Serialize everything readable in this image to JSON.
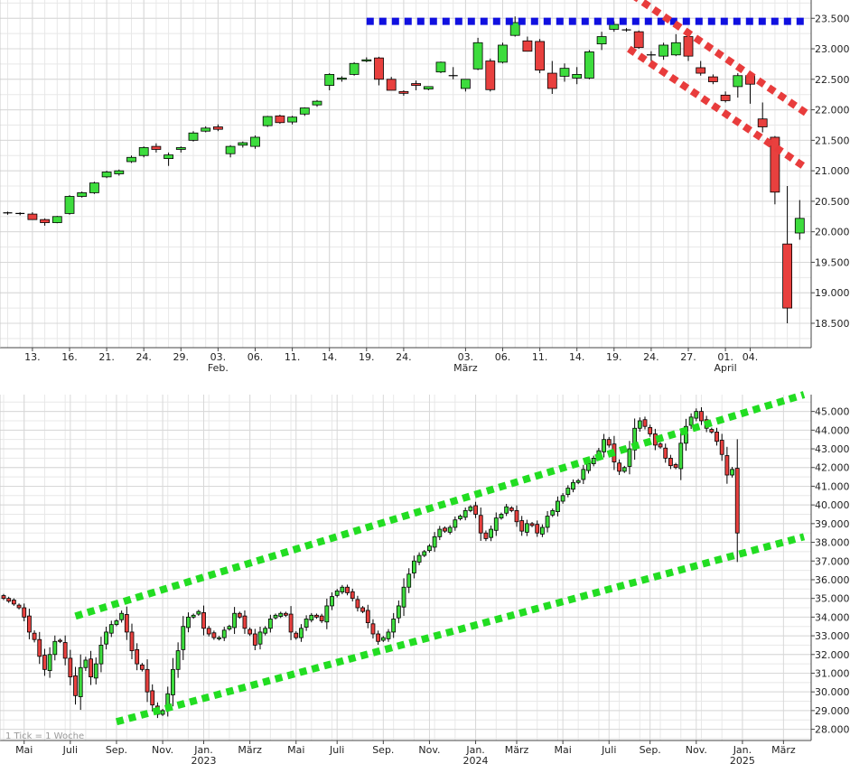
{
  "colors": {
    "up": "#3ddc3d",
    "down": "#e8403e",
    "grid": "#d8d8d8",
    "axis": "#444444",
    "text": "#222222",
    "resistance": "#1010e0",
    "downtrend": "#e83c3c",
    "channel": "#22dd22",
    "footnote": "#999999"
  },
  "chart_data": [
    {
      "type": "candlestick",
      "ylim": [
        18100,
        23800
      ],
      "yticks": [
        18500,
        19000,
        19500,
        20000,
        20500,
        21000,
        21500,
        22000,
        22500,
        23000,
        23500
      ],
      "ytick_labels": [
        "18.500",
        "19.000",
        "19.500",
        "20.000",
        "20.500",
        "21.000",
        "21.500",
        "22.000",
        "22.500",
        "23.000",
        "23.500"
      ],
      "xtick_labels": [
        {
          "i": 2,
          "day": "13.",
          "month": ""
        },
        {
          "i": 5,
          "day": "16.",
          "month": ""
        },
        {
          "i": 8,
          "day": "21.",
          "month": ""
        },
        {
          "i": 11,
          "day": "24.",
          "month": ""
        },
        {
          "i": 14,
          "day": "29.",
          "month": ""
        },
        {
          "i": 17,
          "day": "03.",
          "month": "Feb."
        },
        {
          "i": 20,
          "day": "06.",
          "month": ""
        },
        {
          "i": 23,
          "day": "11.",
          "month": ""
        },
        {
          "i": 26,
          "day": "14.",
          "month": ""
        },
        {
          "i": 29,
          "day": "19.",
          "month": ""
        },
        {
          "i": 32,
          "day": "24.",
          "month": ""
        },
        {
          "i": 37,
          "day": "03.",
          "month": "März"
        },
        {
          "i": 40,
          "day": "06.",
          "month": ""
        },
        {
          "i": 43,
          "day": "11.",
          "month": ""
        },
        {
          "i": 46,
          "day": "14.",
          "month": ""
        },
        {
          "i": 49,
          "day": "19.",
          "month": ""
        },
        {
          "i": 52,
          "day": "24.",
          "month": ""
        },
        {
          "i": 55,
          "day": "27.",
          "month": ""
        },
        {
          "i": 58,
          "day": "01.",
          "month": "April"
        },
        {
          "i": 60,
          "day": "04.",
          "month": ""
        }
      ],
      "candles": [
        [
          20310,
          20330,
          20280,
          20300
        ],
        [
          20300,
          20320,
          20270,
          20290
        ],
        [
          20290,
          20320,
          20220,
          20200
        ],
        [
          20200,
          20220,
          20100,
          20150
        ],
        [
          20150,
          20260,
          20140,
          20250
        ],
        [
          20300,
          20600,
          20280,
          20580
        ],
        [
          20580,
          20660,
          20560,
          20640
        ],
        [
          20640,
          20820,
          20620,
          20800
        ],
        [
          20900,
          21000,
          20880,
          20980
        ],
        [
          20950,
          21020,
          20920,
          21000
        ],
        [
          21150,
          21250,
          21130,
          21220
        ],
        [
          21250,
          21400,
          21220,
          21380
        ],
        [
          21400,
          21450,
          21300,
          21350
        ],
        [
          21200,
          21300,
          21080,
          21260
        ],
        [
          21350,
          21400,
          21300,
          21380
        ],
        [
          21500,
          21650,
          21480,
          21620
        ],
        [
          21650,
          21730,
          21630,
          21700
        ],
        [
          21720,
          21760,
          21650,
          21680
        ],
        [
          21280,
          21420,
          21220,
          21400
        ],
        [
          21420,
          21480,
          21380,
          21460
        ],
        [
          21400,
          21580,
          21360,
          21550
        ],
        [
          21740,
          21900,
          21720,
          21890
        ],
        [
          21900,
          21920,
          21770,
          21790
        ],
        [
          21800,
          21900,
          21760,
          21880
        ],
        [
          21930,
          22040,
          21900,
          22030
        ],
        [
          22080,
          22160,
          22050,
          22140
        ],
        [
          22400,
          22600,
          22320,
          22580
        ],
        [
          22500,
          22550,
          22460,
          22520
        ],
        [
          22580,
          22780,
          22560,
          22760
        ],
        [
          22800,
          22860,
          22780,
          22820
        ],
        [
          22850,
          22870,
          22400,
          22500
        ],
        [
          22500,
          22540,
          22340,
          22320
        ],
        [
          22300,
          22320,
          22230,
          22270
        ],
        [
          22430,
          22480,
          22320,
          22400
        ],
        [
          22340,
          22380,
          22320,
          22380
        ],
        [
          22620,
          22790,
          22600,
          22780
        ],
        [
          22550,
          22700,
          22500,
          22560
        ],
        [
          22350,
          22480,
          22300,
          22500
        ],
        [
          22670,
          23180,
          22650,
          23100
        ],
        [
          22800,
          22840,
          22300,
          22330
        ],
        [
          22780,
          23100,
          22760,
          23060
        ],
        [
          23220,
          23530,
          23200,
          23430
        ],
        [
          23130,
          23200,
          22960,
          22960
        ],
        [
          23120,
          23160,
          22600,
          22650
        ],
        [
          22600,
          22800,
          22260,
          22350
        ],
        [
          22550,
          22760,
          22460,
          22680
        ],
        [
          22520,
          22700,
          22420,
          22580
        ],
        [
          22520,
          22980,
          22500,
          22950
        ],
        [
          23080,
          23280,
          22980,
          23200
        ],
        [
          23320,
          23450,
          23280,
          23400
        ],
        [
          23300,
          23340,
          23280,
          23310
        ],
        [
          23280,
          23300,
          23000,
          23020
        ],
        [
          22900,
          22960,
          22800,
          22890
        ],
        [
          22880,
          23100,
          22820,
          23060
        ],
        [
          22900,
          23240,
          22880,
          23100
        ],
        [
          23200,
          23240,
          22800,
          22880
        ],
        [
          22690,
          22800,
          22560,
          22600
        ],
        [
          22540,
          22580,
          22420,
          22460
        ],
        [
          22240,
          22300,
          22120,
          22150
        ],
        [
          22380,
          22600,
          22200,
          22560
        ],
        [
          22560,
          22620,
          22100,
          22420
        ],
        [
          21850,
          22120,
          21630,
          21720
        ],
        [
          21550,
          21570,
          20450,
          20650
        ],
        [
          19800,
          20750,
          18500,
          18750
        ],
        [
          19980,
          20520,
          19870,
          20220
        ]
      ],
      "overlays": [
        {
          "kind": "resistance",
          "color": "resistance",
          "from": [
            29,
            23450
          ],
          "to": [
            64.5,
            23450
          ]
        },
        {
          "kind": "downtrend",
          "color": "downtrend",
          "from": [
            50.5,
            23880
          ],
          "to": [
            64.5,
            21950
          ]
        },
        {
          "kind": "downtrend",
          "color": "downtrend",
          "from": [
            50.2,
            23000
          ],
          "to": [
            64.5,
            21050
          ]
        }
      ]
    },
    {
      "type": "candlestick",
      "footnote": "1 Tick = 1 Woche",
      "ylim": [
        27400,
        45900
      ],
      "yticks": [
        28000,
        29000,
        30000,
        31000,
        32000,
        33000,
        34000,
        35000,
        36000,
        37000,
        38000,
        39000,
        40000,
        41000,
        42000,
        43000,
        44000,
        45000
      ],
      "ytick_labels": [
        "28.000",
        "29.000",
        "30.000",
        "31.000",
        "32.000",
        "33.000",
        "34.000",
        "35.000",
        "36.000",
        "37.000",
        "38.000",
        "39.000",
        "40.000",
        "41.000",
        "42.000",
        "43.000",
        "44.000",
        "45.000"
      ],
      "xtick_labels": [
        {
          "i": 4,
          "label": "Mai",
          "year": ""
        },
        {
          "i": 13,
          "label": "Juli",
          "year": ""
        },
        {
          "i": 22,
          "label": "Sep.",
          "year": ""
        },
        {
          "i": 31,
          "label": "Nov.",
          "year": ""
        },
        {
          "i": 39,
          "label": "Jan.",
          "year": "2023"
        },
        {
          "i": 48,
          "label": "März",
          "year": ""
        },
        {
          "i": 57,
          "label": "Mai",
          "year": ""
        },
        {
          "i": 65,
          "label": "Juli",
          "year": ""
        },
        {
          "i": 74,
          "label": "Sep.",
          "year": ""
        },
        {
          "i": 83,
          "label": "Nov.",
          "year": ""
        },
        {
          "i": 92,
          "label": "Jan.",
          "year": "2024"
        },
        {
          "i": 100,
          "label": "März",
          "year": ""
        },
        {
          "i": 109,
          "label": "Mai",
          "year": ""
        },
        {
          "i": 118,
          "label": "Juli",
          "year": ""
        },
        {
          "i": 126,
          "label": "Sep.",
          "year": ""
        },
        {
          "i": 135,
          "label": "Nov.",
          "year": ""
        },
        {
          "i": 144,
          "label": "Jan.",
          "year": "2025"
        },
        {
          "i": 152,
          "label": "März",
          "year": ""
        }
      ],
      "closes": [
        35000,
        34850,
        34700,
        34500,
        34000,
        33200,
        32800,
        31900,
        31200,
        32000,
        32700,
        32700,
        31800,
        30800,
        29800,
        31300,
        31700,
        30800,
        31500,
        32500,
        33200,
        33600,
        33800,
        34200,
        33200,
        32200,
        31500,
        31200,
        30000,
        29300,
        28800,
        29000,
        29900,
        31200,
        32200,
        33500,
        34000,
        34100,
        34300,
        33400,
        33100,
        32900,
        32900,
        33300,
        33500,
        34200,
        34000,
        33400,
        33100,
        32500,
        33200,
        33400,
        33900,
        34100,
        34200,
        34100,
        33200,
        32900,
        33400,
        33900,
        34100,
        34000,
        33800,
        34600,
        35100,
        35400,
        35600,
        35300,
        35000,
        34500,
        34300,
        33700,
        33100,
        32700,
        32900,
        33200,
        33900,
        34600,
        35600,
        36300,
        37000,
        37300,
        37500,
        37800,
        38300,
        38700,
        38600,
        38800,
        39200,
        39400,
        39700,
        39900,
        39500,
        38500,
        38200,
        38700,
        39300,
        39500,
        39900,
        39700,
        39100,
        38600,
        39000,
        38900,
        38500,
        38800,
        39400,
        39700,
        40200,
        40500,
        40900,
        41200,
        41300,
        41900,
        42200,
        42500,
        42900,
        43500,
        43200,
        42300,
        41800,
        42000,
        43000,
        44100,
        44500,
        44200,
        43800,
        43200,
        43100,
        42500,
        42100,
        42000,
        43300,
        44200,
        44700,
        45000,
        44500,
        44100,
        43900,
        43400,
        42700,
        41600,
        41900,
        38500
      ],
      "overlays": [
        {
          "kind": "channel-top",
          "color": "channel",
          "from": [
            14,
            34050
          ],
          "to": [
            156,
            45900
          ]
        },
        {
          "kind": "channel-bottom",
          "color": "channel",
          "from": [
            22,
            28400
          ],
          "to": [
            156,
            38300
          ]
        }
      ]
    }
  ]
}
